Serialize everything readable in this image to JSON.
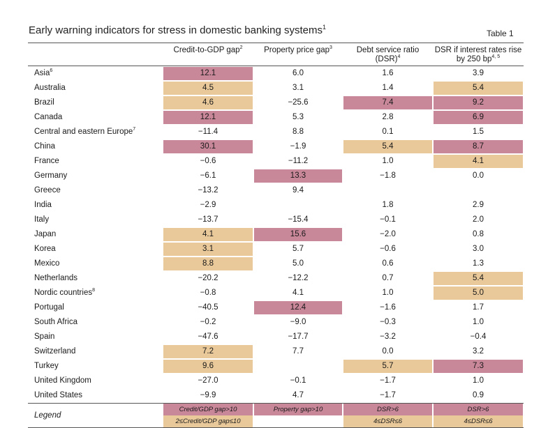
{
  "title": "Early warning indicators for stress in domestic banking systems",
  "title_note": "1",
  "table_label": "Table 1",
  "columns": [
    {
      "label": "",
      "note": ""
    },
    {
      "label": "Credit-to-GDP gap",
      "note": "2"
    },
    {
      "label": "Property price gap",
      "note": "3"
    },
    {
      "label": "Debt service ratio (DSR)",
      "note": "4"
    },
    {
      "label": "DSR if interest rates rise by 250 bp",
      "note": "4, 5"
    }
  ],
  "colors": {
    "red": "#c9879a",
    "orange": "#e9c99a"
  },
  "rows": [
    {
      "name": "Asia",
      "note": "6",
      "cells": [
        {
          "v": "12.1",
          "c": "red"
        },
        {
          "v": "6.0",
          "c": ""
        },
        {
          "v": "1.6",
          "c": ""
        },
        {
          "v": "3.9",
          "c": ""
        }
      ]
    },
    {
      "name": "Australia",
      "note": "",
      "cells": [
        {
          "v": "4.5",
          "c": "orange"
        },
        {
          "v": "3.1",
          "c": ""
        },
        {
          "v": "1.4",
          "c": ""
        },
        {
          "v": "5.4",
          "c": "orange"
        }
      ]
    },
    {
      "name": "Brazil",
      "note": "",
      "cells": [
        {
          "v": "4.6",
          "c": "orange"
        },
        {
          "v": "−25.6",
          "c": ""
        },
        {
          "v": "7.4",
          "c": "red"
        },
        {
          "v": "9.2",
          "c": "red"
        }
      ]
    },
    {
      "name": "Canada",
      "note": "",
      "cells": [
        {
          "v": "12.1",
          "c": "red"
        },
        {
          "v": "5.3",
          "c": ""
        },
        {
          "v": "2.8",
          "c": ""
        },
        {
          "v": "6.9",
          "c": "red"
        }
      ]
    },
    {
      "name": "Central and eastern Europe",
      "note": "7",
      "cells": [
        {
          "v": "−11.4",
          "c": ""
        },
        {
          "v": "8.8",
          "c": ""
        },
        {
          "v": "0.1",
          "c": ""
        },
        {
          "v": "1.5",
          "c": ""
        }
      ]
    },
    {
      "name": "China",
      "note": "",
      "cells": [
        {
          "v": "30.1",
          "c": "red"
        },
        {
          "v": "−1.9",
          "c": ""
        },
        {
          "v": "5.4",
          "c": "orange"
        },
        {
          "v": "8.7",
          "c": "red"
        }
      ]
    },
    {
      "name": "France",
      "note": "",
      "cells": [
        {
          "v": "−0.6",
          "c": ""
        },
        {
          "v": "−11.2",
          "c": ""
        },
        {
          "v": "1.0",
          "c": ""
        },
        {
          "v": "4.1",
          "c": "orange"
        }
      ]
    },
    {
      "name": "Germany",
      "note": "",
      "cells": [
        {
          "v": "−6.1",
          "c": ""
        },
        {
          "v": "13.3",
          "c": "red"
        },
        {
          "v": "−1.8",
          "c": ""
        },
        {
          "v": "0.0",
          "c": ""
        }
      ]
    },
    {
      "name": "Greece",
      "note": "",
      "cells": [
        {
          "v": "−13.2",
          "c": ""
        },
        {
          "v": "9.4",
          "c": ""
        },
        {
          "v": "",
          "c": ""
        },
        {
          "v": "",
          "c": ""
        }
      ]
    },
    {
      "name": "India",
      "note": "",
      "cells": [
        {
          "v": "−2.9",
          "c": ""
        },
        {
          "v": "",
          "c": ""
        },
        {
          "v": "1.8",
          "c": ""
        },
        {
          "v": "2.9",
          "c": ""
        }
      ]
    },
    {
      "name": "Italy",
      "note": "",
      "cells": [
        {
          "v": "−13.7",
          "c": ""
        },
        {
          "v": "−15.4",
          "c": ""
        },
        {
          "v": "−0.1",
          "c": ""
        },
        {
          "v": "2.0",
          "c": ""
        }
      ]
    },
    {
      "name": "Japan",
      "note": "",
      "cells": [
        {
          "v": "4.1",
          "c": "orange"
        },
        {
          "v": "15.6",
          "c": "red"
        },
        {
          "v": "−2.0",
          "c": ""
        },
        {
          "v": "0.8",
          "c": ""
        }
      ]
    },
    {
      "name": "Korea",
      "note": "",
      "cells": [
        {
          "v": "3.1",
          "c": "orange"
        },
        {
          "v": "5.7",
          "c": ""
        },
        {
          "v": "−0.6",
          "c": ""
        },
        {
          "v": "3.0",
          "c": ""
        }
      ]
    },
    {
      "name": "Mexico",
      "note": "",
      "cells": [
        {
          "v": "8.8",
          "c": "orange"
        },
        {
          "v": "5.0",
          "c": ""
        },
        {
          "v": "0.6",
          "c": ""
        },
        {
          "v": "1.3",
          "c": ""
        }
      ]
    },
    {
      "name": "Netherlands",
      "note": "",
      "cells": [
        {
          "v": "−20.2",
          "c": ""
        },
        {
          "v": "−12.2",
          "c": ""
        },
        {
          "v": "0.7",
          "c": ""
        },
        {
          "v": "5.4",
          "c": "orange"
        }
      ]
    },
    {
      "name": "Nordic countries",
      "note": "8",
      "cells": [
        {
          "v": "−0.8",
          "c": ""
        },
        {
          "v": "4.1",
          "c": ""
        },
        {
          "v": "1.0",
          "c": ""
        },
        {
          "v": "5.0",
          "c": "orange"
        }
      ]
    },
    {
      "name": "Portugal",
      "note": "",
      "cells": [
        {
          "v": "−40.5",
          "c": ""
        },
        {
          "v": "12.4",
          "c": "red"
        },
        {
          "v": "−1.6",
          "c": ""
        },
        {
          "v": "1.7",
          "c": ""
        }
      ]
    },
    {
      "name": "South Africa",
      "note": "",
      "cells": [
        {
          "v": "−0.2",
          "c": ""
        },
        {
          "v": "−9.0",
          "c": ""
        },
        {
          "v": "−0.3",
          "c": ""
        },
        {
          "v": "1.0",
          "c": ""
        }
      ]
    },
    {
      "name": "Spain",
      "note": "",
      "cells": [
        {
          "v": "−47.6",
          "c": ""
        },
        {
          "v": "−17.7",
          "c": ""
        },
        {
          "v": "−3.2",
          "c": ""
        },
        {
          "v": "−0.4",
          "c": ""
        }
      ]
    },
    {
      "name": "Switzerland",
      "note": "",
      "cells": [
        {
          "v": "7.2",
          "c": "orange"
        },
        {
          "v": "7.7",
          "c": ""
        },
        {
          "v": "0.0",
          "c": ""
        },
        {
          "v": "3.2",
          "c": ""
        }
      ]
    },
    {
      "name": "Turkey",
      "note": "",
      "cells": [
        {
          "v": "9.6",
          "c": "orange"
        },
        {
          "v": "",
          "c": ""
        },
        {
          "v": "5.7",
          "c": "orange"
        },
        {
          "v": "7.3",
          "c": "red"
        }
      ]
    },
    {
      "name": "United Kingdom",
      "note": "",
      "cells": [
        {
          "v": "−27.0",
          "c": ""
        },
        {
          "v": "−0.1",
          "c": ""
        },
        {
          "v": "−1.7",
          "c": ""
        },
        {
          "v": "1.0",
          "c": ""
        }
      ]
    },
    {
      "name": "United States",
      "note": "",
      "cells": [
        {
          "v": "−9.9",
          "c": ""
        },
        {
          "v": "4.7",
          "c": ""
        },
        {
          "v": "−1.7",
          "c": ""
        },
        {
          "v": "0.9",
          "c": ""
        }
      ]
    }
  ],
  "legend": {
    "label": "Legend",
    "rows": [
      [
        {
          "v": "Credit/GDP gap>10",
          "c": "red"
        },
        {
          "v": "Property gap>10",
          "c": "red"
        },
        {
          "v": "DSR>6",
          "c": "red"
        },
        {
          "v": "DSR>6",
          "c": "red"
        }
      ],
      [
        {
          "v": "2≤Credit/GDP gap≤10",
          "c": "orange"
        },
        {
          "v": "",
          "c": ""
        },
        {
          "v": "4≤DSR≤6",
          "c": "orange"
        },
        {
          "v": "4≤DSR≤6",
          "c": "orange"
        }
      ]
    ]
  }
}
